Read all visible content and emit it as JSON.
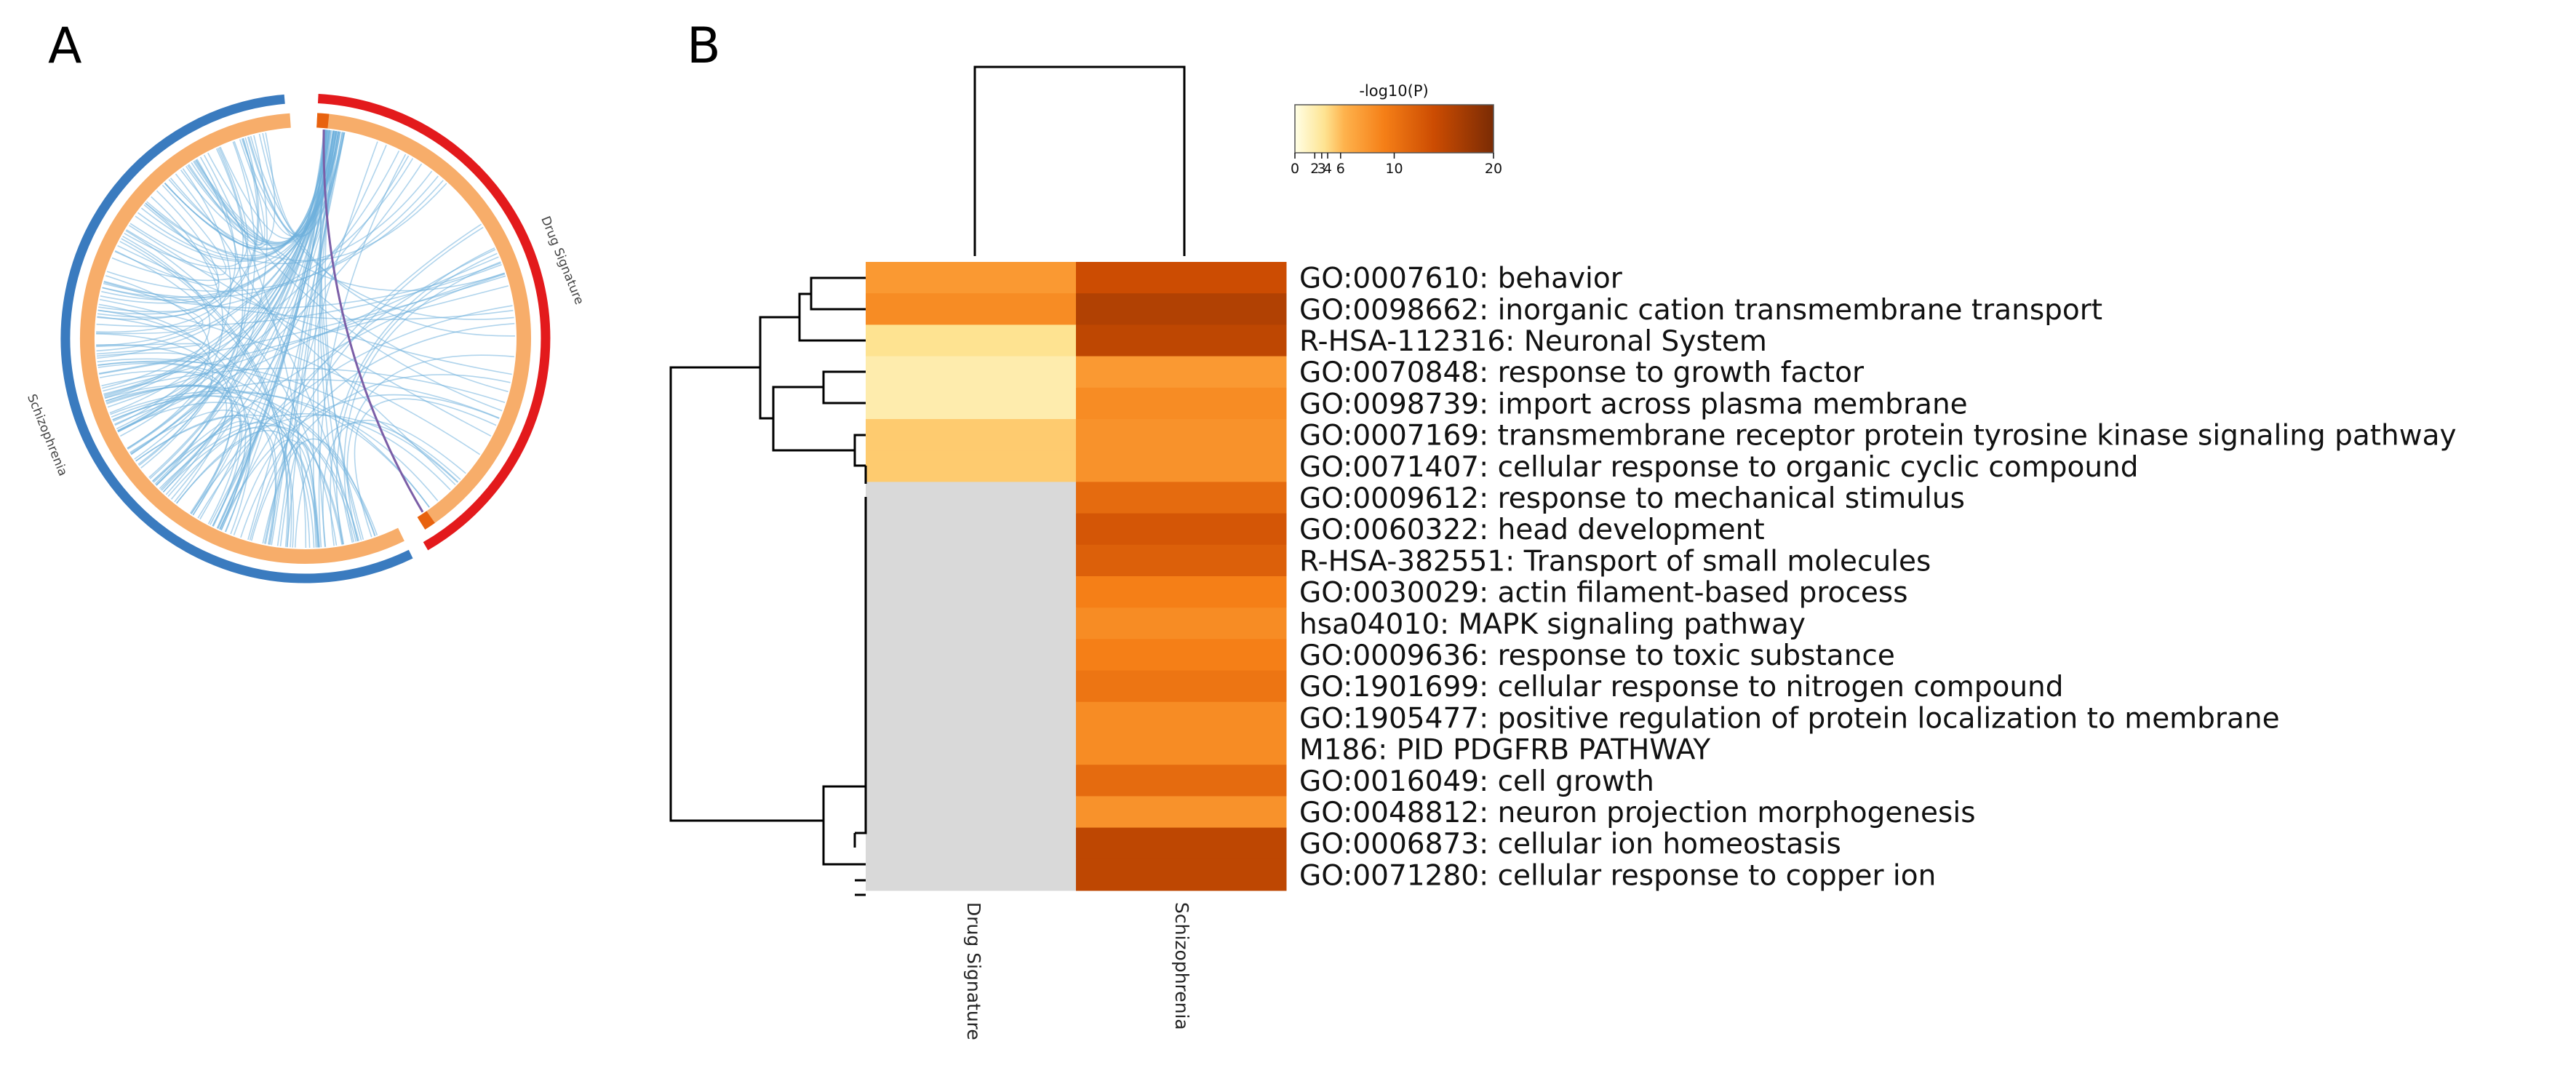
{
  "panels": {
    "a": "A",
    "b": "B"
  },
  "colors": {
    "drug_ring": "#e31a1c",
    "schizo_ring": "#3a7bbf",
    "inner_ring": "#f7ad6a",
    "shared_arc": "#e8620e",
    "chord": "#6fb0dd",
    "missing": "#d9d9d9",
    "dendrogram": "#000000"
  },
  "chart_data": [
    {
      "type": "chord",
      "title": "",
      "groups": [
        "Drug Signature",
        "Schizophrenia"
      ],
      "ring_labels": {
        "drug": "Drug Signature",
        "schizo": "Schizophrenia"
      },
      "description_note": "Circos plot: outer arcs are gene lists, chords connect shared genes/ontology terms"
    },
    {
      "type": "heatmap",
      "title": "",
      "columns": [
        "Drug Signature",
        "Schizophrenia"
      ],
      "rows": [
        "GO:0007610: behavior",
        "GO:0098662: inorganic cation transmembrane transport",
        "R-HSA-112316: Neuronal System",
        "GO:0070848: response to growth factor",
        "GO:0098739: import across plasma membrane",
        "GO:0007169: transmembrane receptor protein tyrosine kinase signaling pathway",
        "GO:0071407: cellular response to organic cyclic compound",
        "GO:0009612: response to mechanical stimulus",
        "GO:0060322: head development",
        "R-HSA-382551: Transport of small molecules",
        "GO:0030029: actin filament-based process",
        "hsa04010: MAPK signaling pathway",
        "GO:0009636: response to toxic substance",
        "GO:1901699: cellular response to nitrogen compound",
        "GO:1905477: positive regulation of protein localization to membrane",
        "M186: PID PDGFRB PATHWAY",
        "GO:0016049: cell growth",
        "GO:0048812: neuron projection morphogenesis",
        "GO:0006873: cellular ion homeostasis",
        "GO:0071280: cellular response to copper ion"
      ],
      "values": [
        [
          7,
          14
        ],
        [
          8,
          16
        ],
        [
          3,
          15
        ],
        [
          2,
          7
        ],
        [
          2,
          8
        ],
        [
          4,
          7.5
        ],
        [
          4,
          7.5
        ],
        [
          null,
          11
        ],
        [
          null,
          13
        ],
        [
          null,
          12
        ],
        [
          null,
          9
        ],
        [
          null,
          8
        ],
        [
          null,
          9
        ],
        [
          null,
          10
        ],
        [
          null,
          8
        ],
        [
          null,
          8
        ],
        [
          null,
          11
        ],
        [
          null,
          7.5
        ],
        [
          null,
          15
        ],
        [
          null,
          15
        ]
      ],
      "colorbar": {
        "title": "-log10(P)",
        "range": [
          0,
          20
        ],
        "ticks": [
          0,
          2,
          3,
          4,
          6,
          10,
          20
        ],
        "tick_labels": [
          "0",
          "2",
          "3",
          "4",
          "6",
          "10",
          "20"
        ]
      }
    }
  ]
}
